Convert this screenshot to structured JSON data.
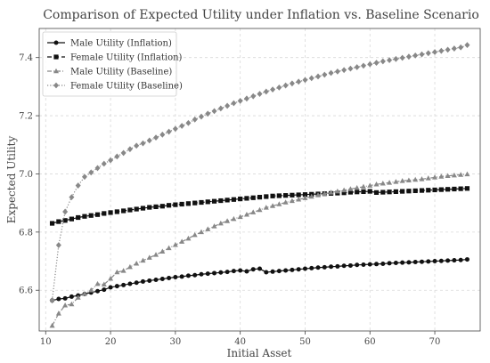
{
  "chart_data": {
    "type": "line",
    "title": "Comparison of Expected Utility under Inflation vs. Baseline Scenario",
    "xlabel": "Initial Asset",
    "ylabel": "Expected Utility",
    "xlim": [
      9,
      77
    ],
    "ylim": [
      6.46,
      7.5
    ],
    "xticks": [
      10,
      20,
      30,
      40,
      50,
      60,
      70
    ],
    "yticks": [
      6.6,
      6.8,
      7.0,
      7.2,
      7.4
    ],
    "grid": true,
    "legend_position": "top-left",
    "x": [
      11,
      12,
      13,
      14,
      15,
      16,
      17,
      18,
      19,
      20,
      21,
      22,
      23,
      24,
      25,
      26,
      27,
      28,
      29,
      30,
      31,
      32,
      33,
      34,
      35,
      36,
      37,
      38,
      39,
      40,
      41,
      42,
      43,
      44,
      45,
      46,
      47,
      48,
      49,
      50,
      51,
      52,
      53,
      54,
      55,
      56,
      57,
      58,
      59,
      60,
      61,
      62,
      63,
      64,
      65,
      66,
      67,
      68,
      69,
      70,
      71,
      72,
      73,
      74,
      75
    ],
    "series": [
      {
        "name": "Male Utility (Inflation)",
        "color": "#111111",
        "marker": "circle",
        "line": "solid",
        "values": [
          6.565,
          6.57,
          6.572,
          6.578,
          6.582,
          6.587,
          6.592,
          6.597,
          6.602,
          6.61,
          6.614,
          6.618,
          6.622,
          6.626,
          6.63,
          6.633,
          6.636,
          6.639,
          6.642,
          6.645,
          6.647,
          6.65,
          6.652,
          6.655,
          6.657,
          6.659,
          6.661,
          6.663,
          6.666,
          6.668,
          6.665,
          6.672,
          6.674,
          6.662,
          6.664,
          6.666,
          6.668,
          6.67,
          6.672,
          6.674,
          6.676,
          6.678,
          6.679,
          6.681,
          6.682,
          6.684,
          6.685,
          6.687,
          6.688,
          6.689,
          6.69,
          6.691,
          6.693,
          6.694,
          6.695,
          6.696,
          6.697,
          6.698,
          6.699,
          6.7,
          6.701,
          6.702,
          6.703,
          6.704,
          6.706
        ]
      },
      {
        "name": "Female Utility (Inflation)",
        "color": "#111111",
        "marker": "square",
        "line": "dashed",
        "values": [
          6.83,
          6.836,
          6.84,
          6.845,
          6.85,
          6.854,
          6.857,
          6.86,
          6.864,
          6.867,
          6.87,
          6.873,
          6.876,
          6.879,
          6.882,
          6.885,
          6.887,
          6.889,
          6.892,
          6.894,
          6.896,
          6.898,
          6.9,
          6.902,
          6.904,
          6.906,
          6.908,
          6.91,
          6.912,
          6.914,
          6.916,
          6.918,
          6.92,
          6.922,
          6.924,
          6.925,
          6.926,
          6.927,
          6.928,
          6.929,
          6.93,
          6.931,
          6.932,
          6.933,
          6.934,
          6.935,
          6.937,
          6.938,
          6.939,
          6.94,
          6.936,
          6.937,
          6.938,
          6.939,
          6.94,
          6.941,
          6.942,
          6.943,
          6.944,
          6.945,
          6.946,
          6.947,
          6.948,
          6.949,
          6.95
        ]
      },
      {
        "name": "Male Utility (Baseline)",
        "color": "#888888",
        "marker": "triangle",
        "line": "dashdot",
        "values": [
          6.478,
          6.52,
          6.548,
          6.552,
          6.575,
          6.588,
          6.6,
          6.622,
          6.62,
          6.64,
          6.662,
          6.667,
          6.68,
          6.692,
          6.702,
          6.712,
          6.722,
          6.733,
          6.745,
          6.756,
          6.767,
          6.778,
          6.79,
          6.8,
          6.81,
          6.82,
          6.83,
          6.838,
          6.845,
          6.852,
          6.86,
          6.868,
          6.876,
          6.884,
          6.89,
          6.896,
          6.902,
          6.907,
          6.912,
          6.917,
          6.922,
          6.927,
          6.932,
          6.936,
          6.94,
          6.944,
          6.948,
          6.952,
          6.956,
          6.96,
          6.964,
          6.967,
          6.97,
          6.973,
          6.976,
          6.978,
          6.98,
          6.982,
          6.985,
          6.988,
          6.991,
          6.993,
          6.995,
          6.997,
          6.999
        ]
      },
      {
        "name": "Female Utility (Baseline)",
        "color": "#888888",
        "marker": "diamond",
        "line": "dotted",
        "values": [
          6.565,
          6.755,
          6.87,
          6.92,
          6.96,
          6.99,
          7.005,
          7.02,
          7.035,
          7.047,
          7.06,
          7.072,
          7.085,
          7.097,
          7.105,
          7.115,
          7.125,
          7.135,
          7.145,
          7.155,
          7.165,
          7.175,
          7.187,
          7.197,
          7.207,
          7.216,
          7.225,
          7.234,
          7.243,
          7.251,
          7.259,
          7.267,
          7.275,
          7.283,
          7.29,
          7.297,
          7.304,
          7.311,
          7.317,
          7.323,
          7.329,
          7.335,
          7.341,
          7.347,
          7.352,
          7.357,
          7.362,
          7.367,
          7.372,
          7.377,
          7.382,
          7.387,
          7.391,
          7.395,
          7.399,
          7.403,
          7.407,
          7.411,
          7.415,
          7.419,
          7.423,
          7.427,
          7.431,
          7.435,
          7.443
        ]
      }
    ]
  }
}
